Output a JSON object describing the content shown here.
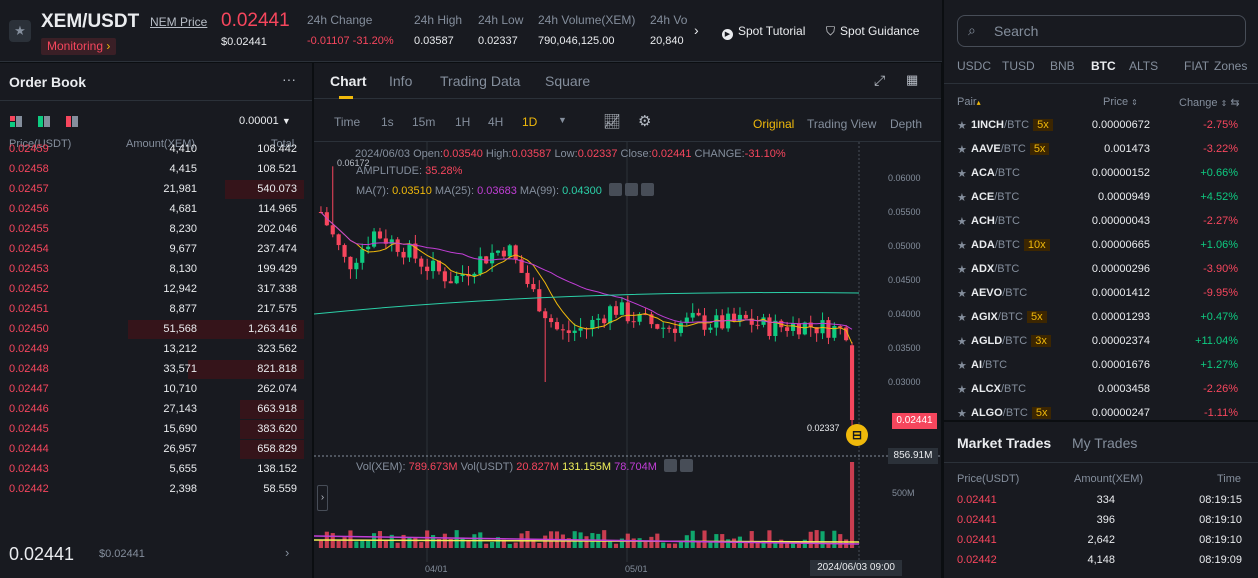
{
  "header": {
    "symbol": "XEM/USDT",
    "token_link": "NEM Price",
    "monitoring": "Monitoring",
    "price": "0.02441",
    "price_usd": "$0.02441",
    "stats": [
      {
        "label": "24h Change",
        "value": "-0.01107 -31.20%"
      },
      {
        "label": "24h High",
        "value": "0.03587"
      },
      {
        "label": "24h Low",
        "value": "0.02337"
      },
      {
        "label": "24h Volume(XEM)",
        "value": "790,046,125.00"
      },
      {
        "label": "24h Vo",
        "value": "20,840"
      }
    ],
    "spot_tutorial": "Spot Tutorial",
    "spot_guidance": "Spot Guidance"
  },
  "orderbook": {
    "title": "Order Book",
    "precision": "0.00001",
    "col_price": "Price(USDT)",
    "col_amount": "Amount(XEM)",
    "col_total": "Total",
    "asks": [
      {
        "price": "0.02459",
        "amount": "4,410",
        "total": "108.442",
        "depth": 0
      },
      {
        "price": "0.02458",
        "amount": "4,415",
        "total": "108.521",
        "depth": 0
      },
      {
        "price": "0.02457",
        "amount": "21,981",
        "total": "540.073",
        "depth": 0.26
      },
      {
        "price": "0.02456",
        "amount": "4,681",
        "total": "114.965",
        "depth": 0
      },
      {
        "price": "0.02455",
        "amount": "8,230",
        "total": "202.046",
        "depth": 0
      },
      {
        "price": "0.02454",
        "amount": "9,677",
        "total": "237.474",
        "depth": 0
      },
      {
        "price": "0.02453",
        "amount": "8,130",
        "total": "199.429",
        "depth": 0
      },
      {
        "price": "0.02452",
        "amount": "12,942",
        "total": "317.338",
        "depth": 0
      },
      {
        "price": "0.02451",
        "amount": "8,877",
        "total": "217.575",
        "depth": 0
      },
      {
        "price": "0.02450",
        "amount": "51,568",
        "total": "1,263.416",
        "depth": 0.58
      },
      {
        "price": "0.02449",
        "amount": "13,212",
        "total": "323.562",
        "depth": 0
      },
      {
        "price": "0.02448",
        "amount": "33,571",
        "total": "821.818",
        "depth": 0.38
      },
      {
        "price": "0.02447",
        "amount": "10,710",
        "total": "262.074",
        "depth": 0
      },
      {
        "price": "0.02446",
        "amount": "27,143",
        "total": "663.918",
        "depth": 0.21
      },
      {
        "price": "0.02445",
        "amount": "15,690",
        "total": "383.620",
        "depth": 0.21
      },
      {
        "price": "0.02444",
        "amount": "26,957",
        "total": "658.829",
        "depth": 0.21
      },
      {
        "price": "0.02443",
        "amount": "5,655",
        "total": "138.152",
        "depth": 0
      },
      {
        "price": "0.02442",
        "amount": "2,398",
        "total": "58.559",
        "depth": 0
      }
    ],
    "last_price": "0.02441",
    "last_price_usd": "$0.02441"
  },
  "chart": {
    "tabs": [
      "Chart",
      "Info",
      "Trading Data",
      "Square"
    ],
    "intervals": [
      "Time",
      "1s",
      "15m",
      "1H",
      "4H",
      "1D"
    ],
    "active_interval": "1D",
    "views": [
      "Original",
      "Trading View",
      "Depth"
    ],
    "info_date": "2024/06/03",
    "open_label": "Open:",
    "open": "0.03540",
    "high_label": "High:",
    "high": "0.03587",
    "low_label": "Low:",
    "low": "0.02337",
    "close_label": "Close:",
    "close": "0.02441",
    "change_label": "CHANGE:",
    "change": "-31.10%",
    "amp_label": "AMPLITUDE:",
    "amplitude": "35.28%",
    "ma7_label": "MA(7):",
    "ma7": "0.03510",
    "ma25_label": "MA(25):",
    "ma25": "0.03683",
    "ma99_label": "MA(99):",
    "ma99": "0.04300",
    "y_ticks": [
      "0.06000",
      "0.05500",
      "0.05000",
      "0.04500",
      "0.04000",
      "0.03500",
      "0.03000"
    ],
    "high_marker": "0.06172",
    "low_marker": "0.02337",
    "last_tag": "0.02441",
    "vol_label": "Vol(XEM):",
    "vol_xem": "789.673M",
    "vol_usdt_label": "Vol(USDT)",
    "vol_usdt": "20.827M",
    "vol_ma1": "131.155M",
    "vol_ma2": "78.704M",
    "vol_tag": "856.91M",
    "vol_tick": "500M",
    "x_ticks": [
      "04/01",
      "05/01"
    ],
    "crosshair_date": "2024/06/03 09:00",
    "colors": {
      "up": "#0ecb81",
      "down": "#f6465d",
      "ma7": "#f0b90b",
      "ma25": "#c13ed6",
      "ma99": "#2bd0a8"
    }
  },
  "markets": {
    "search_placeholder": "Search",
    "tabs": [
      "USDC",
      "TUSD",
      "BNB",
      "BTC",
      "ALTS",
      "FIAT",
      "Zones"
    ],
    "active_tab": "BTC",
    "col_pair": "Pair",
    "col_price": "Price",
    "col_change": "Change",
    "pairs": [
      {
        "base": "1INCH",
        "quote": "/BTC",
        "lev": "5x",
        "price": "0.00000672",
        "change": "-2.75%"
      },
      {
        "base": "AAVE",
        "quote": "/BTC",
        "lev": "5x",
        "price": "0.001473",
        "change": "-3.22%"
      },
      {
        "base": "ACA",
        "quote": "/BTC",
        "lev": "",
        "price": "0.00000152",
        "change": "+0.66%"
      },
      {
        "base": "ACE",
        "quote": "/BTC",
        "lev": "",
        "price": "0.0000949",
        "change": "+4.52%"
      },
      {
        "base": "ACH",
        "quote": "/BTC",
        "lev": "",
        "price": "0.00000043",
        "change": "-2.27%"
      },
      {
        "base": "ADA",
        "quote": "/BTC",
        "lev": "10x",
        "price": "0.00000665",
        "change": "+1.06%"
      },
      {
        "base": "ADX",
        "quote": "/BTC",
        "lev": "",
        "price": "0.00000296",
        "change": "-3.90%"
      },
      {
        "base": "AEVO",
        "quote": "/BTC",
        "lev": "",
        "price": "0.00001412",
        "change": "-9.95%"
      },
      {
        "base": "AGIX",
        "quote": "/BTC",
        "lev": "5x",
        "price": "0.00001293",
        "change": "+0.47%"
      },
      {
        "base": "AGLD",
        "quote": "/BTC",
        "lev": "3x",
        "price": "0.00002374",
        "change": "+11.04%"
      },
      {
        "base": "AI",
        "quote": "/BTC",
        "lev": "",
        "price": "0.00001676",
        "change": "+1.27%"
      },
      {
        "base": "ALCX",
        "quote": "/BTC",
        "lev": "",
        "price": "0.0003458",
        "change": "-2.26%"
      },
      {
        "base": "ALGO",
        "quote": "/BTC",
        "lev": "5x",
        "price": "0.00000247",
        "change": "-1.11%"
      }
    ]
  },
  "trades": {
    "tabs": [
      "Market Trades",
      "My Trades"
    ],
    "col_price": "Price(USDT)",
    "col_amount": "Amount(XEM)",
    "col_time": "Time",
    "rows": [
      {
        "price": "0.02441",
        "amount": "334",
        "time": "08:19:15"
      },
      {
        "price": "0.02441",
        "amount": "396",
        "time": "08:19:10"
      },
      {
        "price": "0.02441",
        "amount": "2,642",
        "time": "08:19:10"
      },
      {
        "price": "0.02442",
        "amount": "4,148",
        "time": "08:19:09"
      }
    ]
  }
}
